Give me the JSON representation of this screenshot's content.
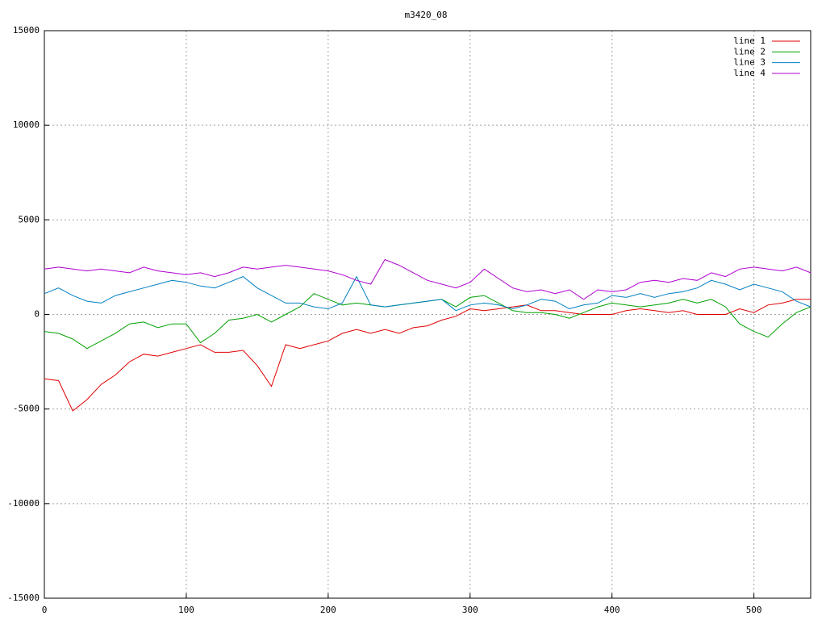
{
  "chart_data": {
    "type": "line",
    "title": "m3420_08",
    "x": [
      0,
      10,
      20,
      30,
      40,
      50,
      60,
      70,
      80,
      90,
      100,
      110,
      120,
      130,
      140,
      150,
      160,
      170,
      180,
      190,
      200,
      210,
      220,
      230,
      240,
      250,
      260,
      270,
      280,
      290,
      300,
      310,
      320,
      330,
      340,
      350,
      360,
      370,
      380,
      390,
      400,
      410,
      420,
      430,
      440,
      450,
      460,
      470,
      480,
      490,
      500,
      510,
      520,
      530,
      540
    ],
    "xlim": [
      0,
      540
    ],
    "xticks": [
      0,
      100,
      200,
      300,
      400,
      500
    ],
    "ylim": [
      -15000,
      15000
    ],
    "yticks": [
      -15000,
      -10000,
      -5000,
      0,
      5000,
      10000,
      15000
    ],
    "grid": true,
    "legend": "top-right",
    "series": [
      {
        "name": "line 1",
        "color": "#e00000",
        "values": [
          -3400,
          -3500,
          -5100,
          -4500,
          -3700,
          -3200,
          -2500,
          -2100,
          -2200,
          -2000,
          -1800,
          -1600,
          -2000,
          -2000,
          -1900,
          -2700,
          -3800,
          -1600,
          -1800,
          -1600,
          -1400,
          -1000,
          -800,
          -1000,
          -800,
          -1000,
          -700,
          -600,
          -300,
          -100,
          300,
          200,
          300,
          400,
          500,
          200,
          200,
          100,
          0,
          0,
          0,
          200,
          300,
          200,
          100,
          200,
          0,
          0,
          0,
          300,
          100,
          500,
          600,
          800,
          800
        ]
      },
      {
        "name": "line 2",
        "color": "#00a000",
        "values": [
          -900,
          -1000,
          -1300,
          -1800,
          -1400,
          -1000,
          -500,
          -400,
          -700,
          -500,
          -500,
          -1500,
          -1000,
          -300,
          -200,
          0,
          -400,
          0,
          400,
          1100,
          800,
          500,
          600,
          500,
          400,
          500,
          600,
          700,
          800,
          400,
          900,
          1000,
          600,
          200,
          100,
          100,
          0,
          -200,
          100,
          400,
          600,
          500,
          400,
          500,
          600,
          800,
          600,
          800,
          400,
          -500,
          -900,
          -1200,
          -500,
          100,
          400
        ]
      },
      {
        "name": "line 3",
        "color": "#0080c0",
        "values": [
          1100,
          1400,
          1000,
          700,
          600,
          1000,
          1200,
          1400,
          1600,
          1800,
          1700,
          1500,
          1400,
          1700,
          2000,
          1400,
          1000,
          600,
          600,
          400,
          300,
          600,
          2000,
          500,
          400,
          500,
          600,
          700,
          800,
          200,
          500,
          600,
          500,
          300,
          500,
          800,
          700,
          300,
          500,
          600,
          1000,
          900,
          1100,
          900,
          1100,
          1200,
          1400,
          1800,
          1600,
          1300,
          1600,
          1400,
          1200,
          700,
          400
        ]
      },
      {
        "name": "line 4",
        "color": "#b000d0",
        "values": [
          2400,
          2500,
          2400,
          2300,
          2400,
          2300,
          2200,
          2500,
          2300,
          2200,
          2100,
          2200,
          2000,
          2200,
          2500,
          2400,
          2500,
          2600,
          2500,
          2400,
          2300,
          2100,
          1800,
          1600,
          2900,
          2600,
          2200,
          1800,
          1600,
          1400,
          1700,
          2400,
          1900,
          1400,
          1200,
          1300,
          1100,
          1300,
          800,
          1300,
          1200,
          1300,
          1700,
          1800,
          1700,
          1900,
          1800,
          2200,
          2000,
          2400,
          2500,
          2400,
          2300,
          2500,
          2200
        ]
      }
    ]
  }
}
